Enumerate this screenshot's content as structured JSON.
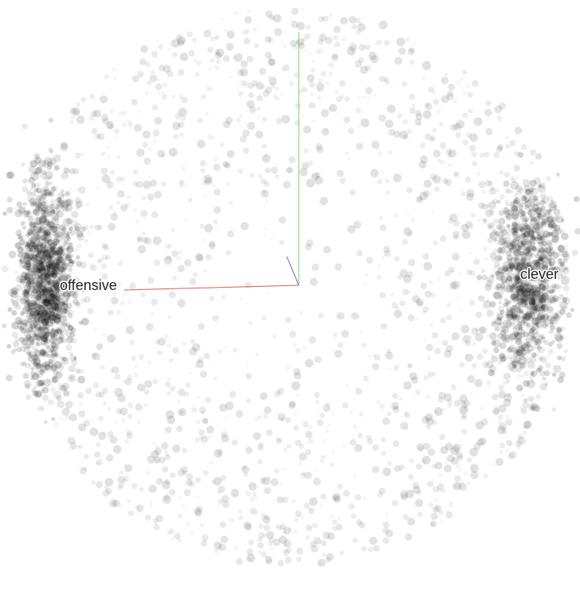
{
  "chart_data": {
    "type": "scatter",
    "title": "",
    "xlabel": "",
    "ylabel": "",
    "grid": false,
    "clusters": [
      {
        "label": "offensive",
        "center": [
          -0.81,
          0.01
        ],
        "spread": [
          0.045,
          0.16
        ],
        "count": 1100
      },
      {
        "label": "clever",
        "center": [
          0.79,
          0.03
        ],
        "spread": [
          0.055,
          0.16
        ],
        "count": 850
      }
    ],
    "background_cloud": {
      "shape": "sphere",
      "radius": 0.93,
      "count": 1700
    },
    "axes_colors": {
      "x": "#e05c4a",
      "y": "#7cd65a",
      "z": "#6a6ad6"
    }
  }
}
